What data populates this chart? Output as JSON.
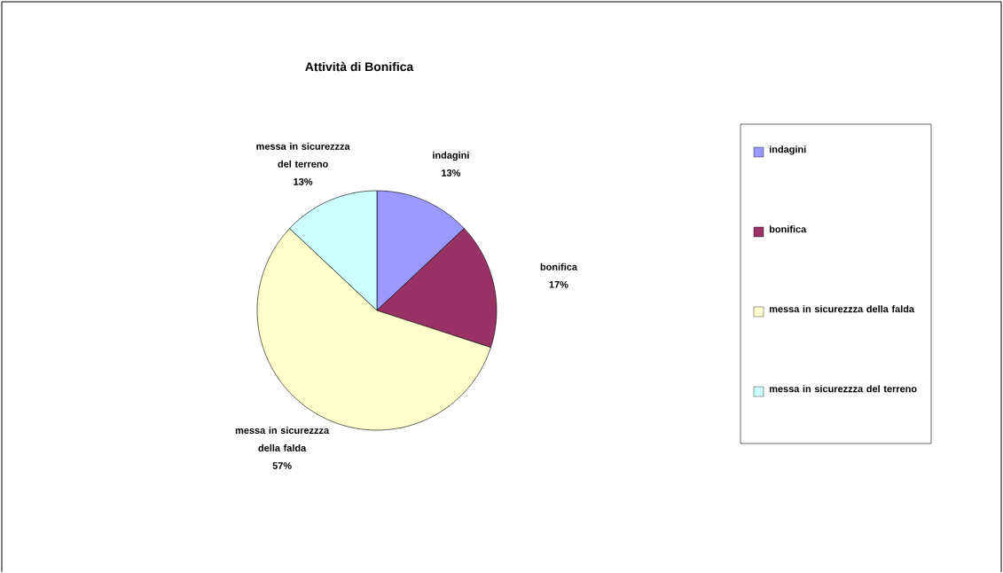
{
  "chart_data": {
    "type": "pie",
    "title": "Attività di Bonifica",
    "categories": [
      "indagini",
      "bonifica",
      "messa in sicurezzza della falda",
      "messa in sicurezzza del terreno"
    ],
    "values": [
      13,
      17,
      57,
      13
    ],
    "value_labels": [
      "13%",
      "17%",
      "57%",
      "13%"
    ],
    "colors": [
      "#9999ff",
      "#993366",
      "#ffffcc",
      "#ccffff"
    ],
    "legend": "right"
  }
}
